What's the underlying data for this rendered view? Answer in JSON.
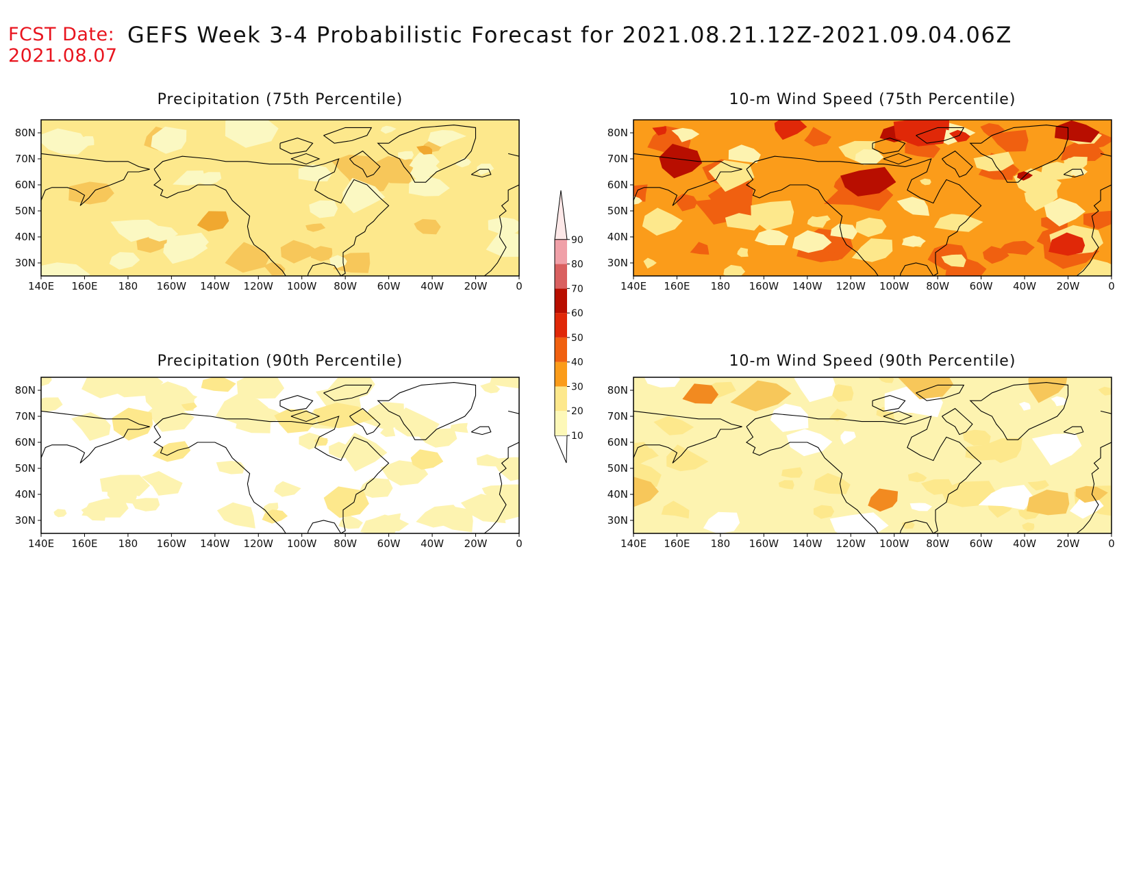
{
  "header": {
    "fcst_label": "FCST Date:",
    "fcst_date": "2021.08.07",
    "title": "GEFS Week 3-4 Probabilistic Forecast for 2021.08.21.12Z-2021.09.04.06Z"
  },
  "panels": [
    {
      "id": "precip75",
      "title": "Precipitation (75th Percentile)",
      "base": "#fde88c",
      "blobs": [
        [
          "#f7c75a",
          0.12
        ],
        [
          "#fbf8c2",
          0.22
        ],
        [
          "#f0a830",
          0.02
        ]
      ]
    },
    {
      "id": "wind75",
      "title": "10-m Wind Speed (75th Percentile)",
      "base": "#fb9c1a",
      "blobs": [
        [
          "#f06010",
          0.25
        ],
        [
          "#fde88c",
          0.22
        ],
        [
          "#fdf3b0",
          0.1
        ],
        [
          "#b80e00",
          0.04
        ],
        [
          "#e02808",
          0.05
        ]
      ]
    },
    {
      "id": "precip90",
      "title": "Precipitation (90th Percentile)",
      "base": "#ffffff",
      "blobs": [
        [
          "#fdf3b0",
          0.45
        ],
        [
          "#fde88c",
          0.08
        ]
      ]
    },
    {
      "id": "wind90",
      "title": "10-m Wind Speed (90th Percentile)",
      "base": "#fdf3b0",
      "blobs": [
        [
          "#fde88c",
          0.25
        ],
        [
          "#ffffff",
          0.12
        ],
        [
          "#f7c75a",
          0.05
        ],
        [
          "#f28a20",
          0.02
        ]
      ]
    }
  ],
  "map_axes": {
    "lon_labels": [
      "140E",
      "160E",
      "180",
      "160W",
      "140W",
      "120W",
      "100W",
      "80W",
      "60W",
      "40W",
      "20W",
      "0"
    ],
    "lat_labels": [
      "80N",
      "70N",
      "60N",
      "50N",
      "40N",
      "30N"
    ],
    "lon_range": [
      140,
      360
    ],
    "lat_range": [
      25,
      85
    ]
  },
  "colorbar": {
    "levels": [
      "10",
      "20",
      "30",
      "40",
      "50",
      "60",
      "70",
      "80",
      "90"
    ],
    "colors": [
      "#fdf8b8",
      "#fde88c",
      "#fb9c1a",
      "#f06010",
      "#e02808",
      "#b80e00",
      "#d96060",
      "#f0a0a8",
      "#fde8e8"
    ]
  }
}
